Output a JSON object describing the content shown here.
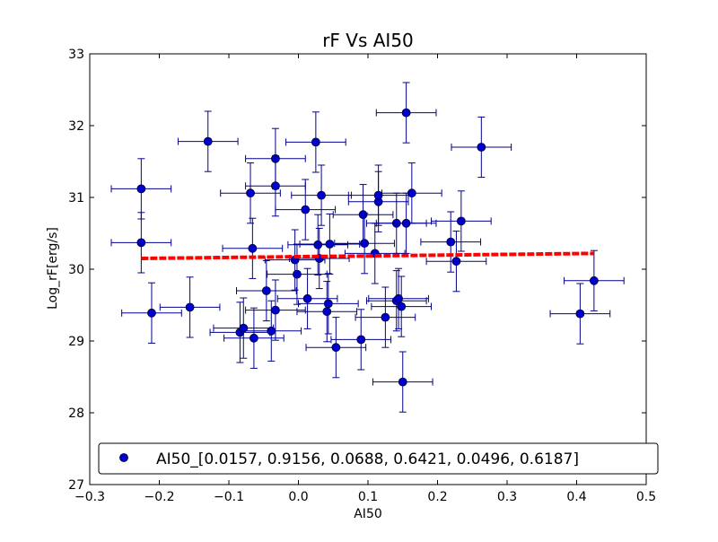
{
  "chart_data": {
    "type": "scatter",
    "title": "rF Vs AI50",
    "xlabel": "AI50",
    "ylabel": "Log_rF[erg/s]",
    "xlim": [
      -0.3,
      0.5
    ],
    "ylim": [
      27,
      33
    ],
    "xticks": [
      -0.3,
      -0.2,
      -0.1,
      0.0,
      0.1,
      0.2,
      0.3,
      0.4,
      0.5
    ],
    "xtick_labels": [
      "−0.3",
      "−0.2",
      "−0.1",
      "0.0",
      "0.1",
      "0.2",
      "0.3",
      "0.4",
      "0.5"
    ],
    "yticks": [
      27,
      28,
      29,
      30,
      31,
      32,
      33
    ],
    "ytick_labels": [
      "27",
      "28",
      "29",
      "30",
      "31",
      "32",
      "33"
    ],
    "grid": false,
    "legend": {
      "placement": "bottom-center",
      "label": "AI50_[0.0157, 0.9156, 0.0688, 0.6421, 0.0496, 0.6187]"
    },
    "colors": {
      "points": "#0000cc",
      "errorbars": "#00008b",
      "fit": "#ff0000"
    },
    "x_err": 0.043,
    "y_err": 0.42,
    "points": [
      {
        "x": -0.226,
        "y": 31.12
      },
      {
        "x": -0.226,
        "y": 30.37
      },
      {
        "x": -0.211,
        "y": 29.39
      },
      {
        "x": -0.156,
        "y": 29.47
      },
      {
        "x": -0.13,
        "y": 31.78
      },
      {
        "x": -0.084,
        "y": 29.12
      },
      {
        "x": -0.079,
        "y": 29.18
      },
      {
        "x": -0.069,
        "y": 31.06
      },
      {
        "x": -0.066,
        "y": 30.29
      },
      {
        "x": -0.064,
        "y": 29.04
      },
      {
        "x": -0.046,
        "y": 29.7
      },
      {
        "x": -0.039,
        "y": 29.14
      },
      {
        "x": -0.033,
        "y": 31.54
      },
      {
        "x": -0.033,
        "y": 31.16
      },
      {
        "x": -0.033,
        "y": 29.43
      },
      {
        "x": -0.005,
        "y": 30.13
      },
      {
        "x": -0.002,
        "y": 29.93
      },
      {
        "x": 0.01,
        "y": 30.83
      },
      {
        "x": 0.013,
        "y": 29.59
      },
      {
        "x": 0.025,
        "y": 31.77
      },
      {
        "x": 0.028,
        "y": 30.34
      },
      {
        "x": 0.03,
        "y": 30.15
      },
      {
        "x": 0.033,
        "y": 31.03
      },
      {
        "x": 0.041,
        "y": 29.41
      },
      {
        "x": 0.043,
        "y": 29.52
      },
      {
        "x": 0.045,
        "y": 30.35
      },
      {
        "x": 0.054,
        "y": 28.91
      },
      {
        "x": 0.09,
        "y": 29.02
      },
      {
        "x": 0.093,
        "y": 30.76
      },
      {
        "x": 0.095,
        "y": 30.36
      },
      {
        "x": 0.11,
        "y": 30.22
      },
      {
        "x": 0.115,
        "y": 30.94
      },
      {
        "x": 0.115,
        "y": 31.03
      },
      {
        "x": 0.125,
        "y": 29.33
      },
      {
        "x": 0.141,
        "y": 30.64
      },
      {
        "x": 0.141,
        "y": 29.56
      },
      {
        "x": 0.144,
        "y": 29.59
      },
      {
        "x": 0.148,
        "y": 29.48
      },
      {
        "x": 0.15,
        "y": 28.43
      },
      {
        "x": 0.155,
        "y": 32.18
      },
      {
        "x": 0.155,
        "y": 30.64
      },
      {
        "x": 0.163,
        "y": 31.06
      },
      {
        "x": 0.219,
        "y": 30.38
      },
      {
        "x": 0.227,
        "y": 30.11
      },
      {
        "x": 0.234,
        "y": 30.67
      },
      {
        "x": 0.263,
        "y": 31.7
      },
      {
        "x": 0.405,
        "y": 29.38
      },
      {
        "x": 0.425,
        "y": 29.84
      }
    ],
    "fit_line": {
      "x": [
        -0.226,
        0.425
      ],
      "y": [
        30.15,
        30.22
      ],
      "style": "dashed"
    }
  }
}
